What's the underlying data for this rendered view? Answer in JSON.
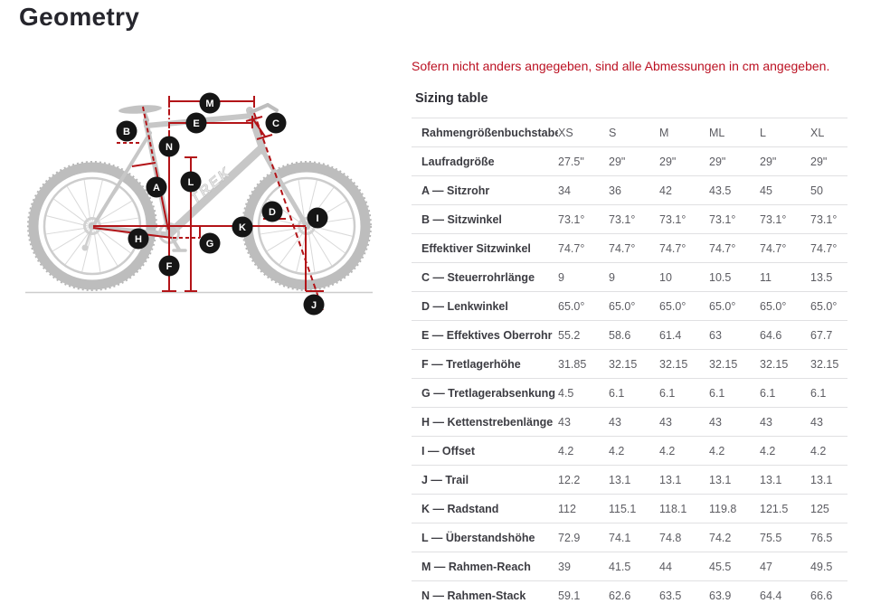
{
  "page": {
    "title": "Geometry"
  },
  "note": "Sofern nicht anders angegeben, sind alle Abmessungen in cm angegeben.",
  "table": {
    "title": "Sizing table",
    "label_header": "Rahmengrößenbuchstabe",
    "size_headers": [
      "XS",
      "S",
      "M",
      "ML",
      "L",
      "XL"
    ],
    "rows": [
      {
        "label": "Laufradgröße",
        "values": [
          "27.5\"",
          "29\"",
          "29\"",
          "29\"",
          "29\"",
          "29\""
        ]
      },
      {
        "label": "A — Sitzrohr",
        "values": [
          "34",
          "36",
          "42",
          "43.5",
          "45",
          "50"
        ]
      },
      {
        "label": "B — Sitzwinkel",
        "values": [
          "73.1°",
          "73.1°",
          "73.1°",
          "73.1°",
          "73.1°",
          "73.1°"
        ]
      },
      {
        "label": "Effektiver Sitzwinkel",
        "values": [
          "74.7°",
          "74.7°",
          "74.7°",
          "74.7°",
          "74.7°",
          "74.7°"
        ]
      },
      {
        "label": "C — Steuerrohrlänge",
        "values": [
          "9",
          "9",
          "10",
          "10.5",
          "11",
          "13.5"
        ]
      },
      {
        "label": "D — Lenkwinkel",
        "values": [
          "65.0°",
          "65.0°",
          "65.0°",
          "65.0°",
          "65.0°",
          "65.0°"
        ]
      },
      {
        "label": "E — Effektives Oberrohr",
        "values": [
          "55.2",
          "58.6",
          "61.4",
          "63",
          "64.6",
          "67.7"
        ]
      },
      {
        "label": "F — Tretlagerhöhe",
        "values": [
          "31.85",
          "32.15",
          "32.15",
          "32.15",
          "32.15",
          "32.15"
        ]
      },
      {
        "label": "G — Tretlagerabsenkung",
        "values": [
          "4.5",
          "6.1",
          "6.1",
          "6.1",
          "6.1",
          "6.1"
        ]
      },
      {
        "label": "H — Kettenstrebenlänge",
        "values": [
          "43",
          "43",
          "43",
          "43",
          "43",
          "43"
        ]
      },
      {
        "label": "I — Offset",
        "values": [
          "4.2",
          "4.2",
          "4.2",
          "4.2",
          "4.2",
          "4.2"
        ]
      },
      {
        "label": "J — Trail",
        "values": [
          "12.2",
          "13.1",
          "13.1",
          "13.1",
          "13.1",
          "13.1"
        ]
      },
      {
        "label": "K — Radstand",
        "values": [
          "112",
          "115.1",
          "118.1",
          "119.8",
          "121.5",
          "125"
        ]
      },
      {
        "label": "L — Überstandshöhe",
        "values": [
          "72.9",
          "74.1",
          "74.8",
          "74.2",
          "75.5",
          "76.5"
        ]
      },
      {
        "label": "M — Rahmen-Reach",
        "values": [
          "39",
          "41.5",
          "44",
          "45.5",
          "47",
          "49.5"
        ]
      },
      {
        "label": "N — Rahmen-Stack",
        "values": [
          "59.1",
          "62.6",
          "63.5",
          "63.9",
          "64.4",
          "66.6"
        ]
      }
    ]
  },
  "diagram": {
    "bike_logo": "TREK",
    "markers": [
      "M",
      "E",
      "C",
      "B",
      "N",
      "A",
      "L",
      "D",
      "I",
      "K",
      "H",
      "G",
      "F",
      "J"
    ]
  },
  "colors": {
    "accent_red": "#bb1122",
    "line_red": "#b31418",
    "marker_black": "#151515",
    "bike_gray": "#c7c7c7"
  }
}
